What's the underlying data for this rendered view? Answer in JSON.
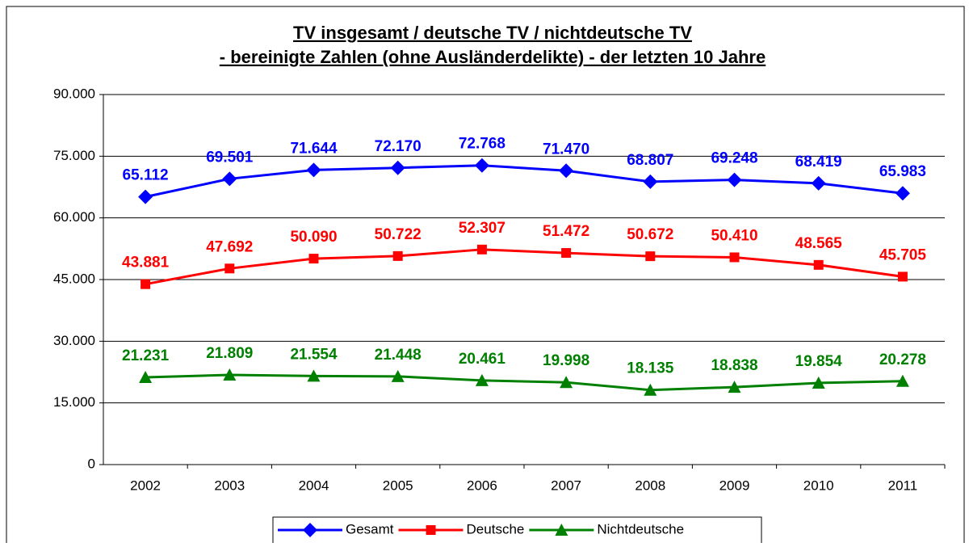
{
  "chart_data": {
    "type": "line",
    "title": "TV insgesamt / deutsche TV / nichtdeutsche TV",
    "subtitle": "- bereinigte Zahlen (ohne Ausländerdelikte) - der letzten 10 Jahre",
    "categories": [
      "2002",
      "2003",
      "2004",
      "2005",
      "2006",
      "2007",
      "2008",
      "2009",
      "2010",
      "2011"
    ],
    "series": [
      {
        "name": "Gesamt",
        "color": "#0000ff",
        "marker": "diamond",
        "values": [
          65112,
          69501,
          71644,
          72170,
          72768,
          71470,
          68807,
          69248,
          68419,
          65983
        ],
        "value_labels": [
          "65.112",
          "69.501",
          "71.644",
          "72.170",
          "72.768",
          "71.470",
          "68.807",
          "69.248",
          "68.419",
          "65.983"
        ]
      },
      {
        "name": "Deutsche",
        "color": "#ff0000",
        "marker": "square",
        "values": [
          43881,
          47692,
          50090,
          50722,
          52307,
          51472,
          50672,
          50410,
          48565,
          45705
        ],
        "value_labels": [
          "43.881",
          "47.692",
          "50.090",
          "50.722",
          "52.307",
          "51.472",
          "50.672",
          "50.410",
          "48.565",
          "45.705"
        ]
      },
      {
        "name": "Nichtdeutsche",
        "color": "#008000",
        "marker": "triangle",
        "values": [
          21231,
          21809,
          21554,
          21448,
          20461,
          19998,
          18135,
          18838,
          19854,
          20278
        ],
        "value_labels": [
          "21.231",
          "21.809",
          "21.554",
          "21.448",
          "20.461",
          "19.998",
          "18.135",
          "18.838",
          "19.854",
          "20.278"
        ]
      }
    ],
    "ylim": [
      0,
      90000
    ],
    "yticks": [
      0,
      {
        "value": 15000,
        "label": "15.000"
      },
      {
        "value": 30000,
        "label": "30.000"
      },
      {
        "value": 45000,
        "label": "45.000"
      },
      {
        "value": 60000,
        "label": "60.000"
      },
      {
        "value": 75000,
        "label": "75.000"
      },
      {
        "value": 90000,
        "label": "90.000"
      }
    ],
    "grid": true,
    "legend": "bottom"
  }
}
